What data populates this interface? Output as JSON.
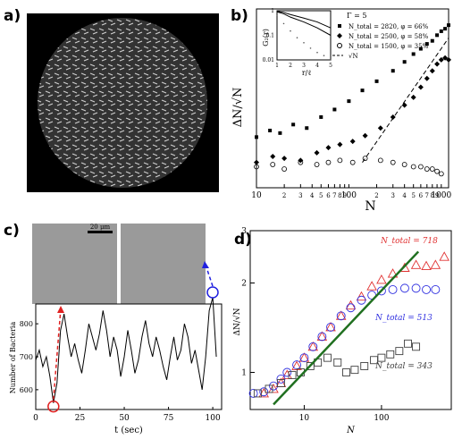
{
  "panels": {
    "a": {
      "letter": "a)"
    },
    "b": {
      "letter": "b)"
    },
    "c": {
      "letter": "c)"
    },
    "d": {
      "letter": "d)"
    }
  },
  "chart_data": [
    {
      "id": "b",
      "type": "scatter",
      "xlabel": "N",
      "ylabel": "ΔN/√N",
      "xscale": "log",
      "yscale": "log",
      "xlim": [
        10,
        1200
      ],
      "x_ticks": [
        "10",
        "2",
        "3",
        "4",
        "5",
        "6",
        "7",
        "8",
        "9",
        "100",
        "2",
        "3",
        "4",
        "5",
        "6",
        "7",
        "8",
        "9",
        "1000"
      ],
      "legend_title": "Γ = 5",
      "legend_position": "top-right",
      "series": [
        {
          "name": "N_total = 2820, φ = 66%",
          "marker": "filled-square",
          "x": [
            10,
            14,
            18,
            25,
            35,
            50,
            70,
            100,
            140,
            200,
            300,
            400,
            500,
            600,
            700,
            800,
            900,
            1000,
            1100,
            1200
          ],
          "y": [
            0.45,
            0.5,
            0.48,
            0.55,
            0.52,
            0.62,
            0.7,
            0.8,
            0.95,
            1.1,
            1.3,
            1.5,
            1.7,
            1.85,
            2.0,
            2.1,
            2.3,
            2.45,
            2.55,
            2.7
          ]
        },
        {
          "name": "N_total = 2500, φ = 58%",
          "marker": "filled-diamond",
          "x": [
            10,
            15,
            20,
            30,
            45,
            60,
            80,
            110,
            150,
            220,
            300,
            400,
            500,
            600,
            700,
            800,
            900,
            1000,
            1100,
            1200
          ],
          "y": [
            0.3,
            0.33,
            0.32,
            0.31,
            0.35,
            0.38,
            0.4,
            0.42,
            0.46,
            0.52,
            0.62,
            0.75,
            0.85,
            1.0,
            1.15,
            1.3,
            1.45,
            1.55,
            1.6,
            1.55
          ]
        },
        {
          "name": "N_total = 1500, φ = 35%",
          "marker": "open-circle",
          "x": [
            10,
            15,
            20,
            30,
            45,
            60,
            80,
            110,
            150,
            220,
            300,
            400,
            500,
            600,
            700,
            800,
            900,
            1000
          ],
          "y": [
            0.28,
            0.29,
            0.27,
            0.3,
            0.29,
            0.3,
            0.31,
            0.3,
            0.32,
            0.31,
            0.3,
            0.29,
            0.28,
            0.28,
            0.27,
            0.27,
            0.26,
            0.25
          ]
        },
        {
          "name": "√N",
          "style": "dashed-line",
          "x": [
            140,
            1200
          ],
          "y": [
            0.3,
            2.2
          ]
        }
      ],
      "inset": {
        "xlabel": "r/ℓ",
        "ylabel": "G₂(r)",
        "x_ticks": [
          "1",
          "2",
          "3",
          "4",
          "5"
        ],
        "y_ticks": [
          "1",
          "0.1",
          "0.01"
        ],
        "series": [
          {
            "style": "solid",
            "x": [
              1,
              1.5,
              2,
              3,
              4,
              5
            ],
            "y": [
              0.95,
              0.85,
              0.7,
              0.5,
              0.35,
              0.2
            ]
          },
          {
            "style": "solid",
            "x": [
              1,
              1.5,
              2,
              3,
              4,
              5
            ],
            "y": [
              0.9,
              0.75,
              0.55,
              0.35,
              0.2,
              0.1
            ]
          },
          {
            "style": "points",
            "x": [
              1,
              1.5,
              2,
              2.5,
              3,
              3.5,
              4,
              4.5,
              5
            ],
            "y": [
              0.6,
              0.3,
              0.15,
              0.08,
              0.05,
              0.03,
              0.02,
              0.015,
              0.01
            ]
          }
        ]
      }
    },
    {
      "id": "c",
      "type": "line",
      "xlabel": "t (sec)",
      "ylabel": "Number of Bacteria",
      "xlim": [
        0,
        105
      ],
      "ylim": [
        540,
        860
      ],
      "x_ticks": [
        "0",
        "25",
        "50",
        "75",
        "100"
      ],
      "y_ticks": [
        "600",
        "700",
        "800"
      ],
      "scale_bar_label": "20 μm",
      "series": [
        {
          "x": [
            0,
            2,
            4,
            6,
            8,
            10,
            12,
            14,
            16,
            18,
            20,
            22,
            24,
            26,
            28,
            30,
            32,
            34,
            36,
            38,
            40,
            42,
            44,
            46,
            48,
            50,
            52,
            54,
            56,
            58,
            60,
            62,
            64,
            66,
            68,
            70,
            72,
            74,
            76,
            78,
            80,
            82,
            84,
            86,
            88,
            90,
            92,
            94,
            96,
            98,
            100,
            102
          ],
          "y": [
            690,
            720,
            670,
            700,
            640,
            560,
            620,
            780,
            830,
            760,
            700,
            740,
            690,
            650,
            720,
            800,
            760,
            720,
            770,
            840,
            780,
            700,
            760,
            720,
            640,
            700,
            780,
            720,
            650,
            690,
            760,
            810,
            740,
            700,
            760,
            720,
            670,
            630,
            700,
            760,
            690,
            720,
            800,
            760,
            680,
            720,
            660,
            600,
            700,
            840,
            880,
            700
          ]
        }
      ],
      "annotations": [
        {
          "type": "circle",
          "color": "#e02020",
          "x": 10,
          "y": 560
        },
        {
          "type": "circle",
          "color": "#2020e0",
          "x": 98,
          "y": 880
        }
      ]
    },
    {
      "id": "d",
      "type": "scatter",
      "xlabel": "N",
      "ylabel": "ΔN/√N",
      "xscale": "log",
      "yscale": "log",
      "xlim": [
        2,
        800
      ],
      "ylim": [
        0.75,
        3
      ],
      "x_ticks": [
        "10",
        "100"
      ],
      "y_ticks": [
        "1",
        "2",
        "3"
      ],
      "series": [
        {
          "name": "N_total = 718",
          "color": "#e03030",
          "marker": "open-triangle",
          "x": [
            3,
            4,
            5,
            6,
            8,
            10,
            13,
            17,
            22,
            30,
            40,
            55,
            75,
            100,
            140,
            200,
            280,
            380,
            500,
            650
          ],
          "y": [
            0.85,
            0.88,
            0.92,
            0.98,
            1.05,
            1.12,
            1.22,
            1.32,
            1.42,
            1.55,
            1.68,
            1.8,
            1.95,
            2.05,
            2.15,
            2.25,
            2.3,
            2.28,
            2.3,
            2.45
          ]
        },
        {
          "name": "N_total = 513",
          "color": "#3030e0",
          "marker": "open-circle",
          "x": [
            2.2,
            3,
            4,
            5,
            6,
            8,
            10,
            13,
            17,
            22,
            30,
            40,
            55,
            75,
            100,
            140,
            200,
            280,
            380,
            500
          ],
          "y": [
            0.85,
            0.86,
            0.9,
            0.95,
            1.0,
            1.06,
            1.12,
            1.22,
            1.32,
            1.42,
            1.55,
            1.65,
            1.75,
            1.82,
            1.88,
            1.9,
            1.92,
            1.92,
            1.9,
            1.9
          ]
        },
        {
          "name": "N_total = 343",
          "color": "#404040",
          "marker": "open-square",
          "x": [
            2.5,
            3.5,
            5,
            7,
            9,
            12,
            15,
            20,
            27,
            35,
            45,
            60,
            80,
            100,
            130,
            170,
            220,
            280
          ],
          "y": [
            0.85,
            0.88,
            0.92,
            0.98,
            1.0,
            1.05,
            1.08,
            1.12,
            1.08,
            1.0,
            1.02,
            1.05,
            1.1,
            1.12,
            1.15,
            1.18,
            1.25,
            1.22
          ]
        },
        {
          "name": "fit",
          "color": "#207020",
          "style": "solid-line",
          "x": [
            4,
            300
          ],
          "y": [
            0.78,
            2.55
          ]
        }
      ]
    }
  ],
  "colors": {
    "red": "#e02020",
    "blue": "#2020e0",
    "green": "#207020",
    "gray": "#404040"
  }
}
